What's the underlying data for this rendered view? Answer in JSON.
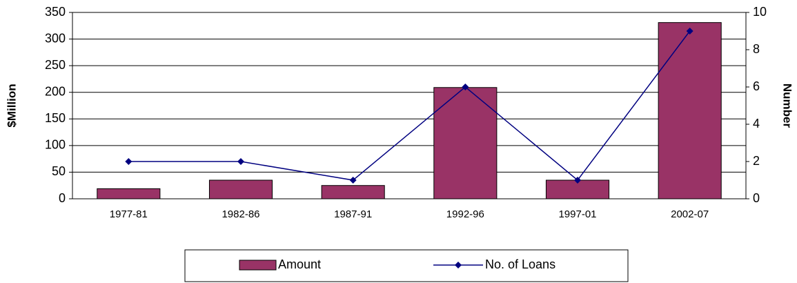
{
  "chart_data": {
    "type": "bar",
    "categories": [
      "1977-81",
      "1982-86",
      "1987-91",
      "1992-96",
      "1997-01",
      "2002-07"
    ],
    "series": [
      {
        "name": "Amount",
        "type": "bar",
        "color": "#993366",
        "axis": "y",
        "values": [
          19,
          35,
          25,
          209,
          35,
          331
        ]
      },
      {
        "name": "No. of Loans",
        "type": "line",
        "color": "#000080",
        "axis": "y2",
        "values": [
          2,
          2,
          1,
          6,
          1,
          9
        ]
      }
    ],
    "ylabel": "$Million",
    "y2label": "Number",
    "ylim": [
      0,
      350
    ],
    "yticks": [
      0,
      50,
      100,
      150,
      200,
      250,
      300,
      350
    ],
    "y2lim": [
      0,
      10
    ],
    "y2ticks": [
      0,
      2,
      4,
      6,
      8,
      10
    ],
    "grid": true,
    "legend": "bottom"
  }
}
